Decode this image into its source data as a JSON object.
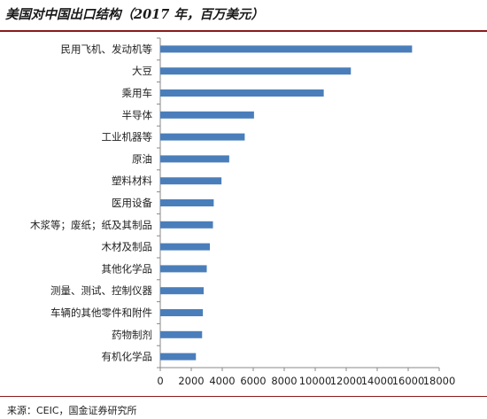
{
  "header": {
    "title": "美国对中国出口结构（2017 年，百万美元）"
  },
  "footer": {
    "source": "来源：CEIC，国金证券研究所"
  },
  "chart_data": {
    "type": "bar",
    "orientation": "horizontal",
    "title": "美国对中国出口结构（2017 年，百万美元）",
    "xlabel": "",
    "ylabel": "",
    "categories": [
      "民用飞机、发动机等",
      "大豆",
      "乘用车",
      "半导体",
      "工业机器等",
      "原油",
      "塑料材料",
      "医用设备",
      "木浆等；废纸；纸及其制品",
      "木材及制品",
      "其他化学品",
      "测量、测试、控制仪器",
      "车辆的其他零件和附件",
      "药物制剂",
      "有机化学品"
    ],
    "values": [
      16250,
      12300,
      10550,
      6050,
      5450,
      4450,
      3950,
      3450,
      3400,
      3200,
      3000,
      2800,
      2750,
      2700,
      2300
    ],
    "xlim": [
      0,
      18000
    ],
    "xticks": [
      0,
      2000,
      4000,
      6000,
      8000,
      10000,
      12000,
      14000,
      16000,
      18000
    ],
    "grid": false,
    "legend": "none",
    "colors": {
      "bar": "#4a7ebb",
      "axis": "#888888",
      "title_rule": "#8b1a1a"
    }
  }
}
